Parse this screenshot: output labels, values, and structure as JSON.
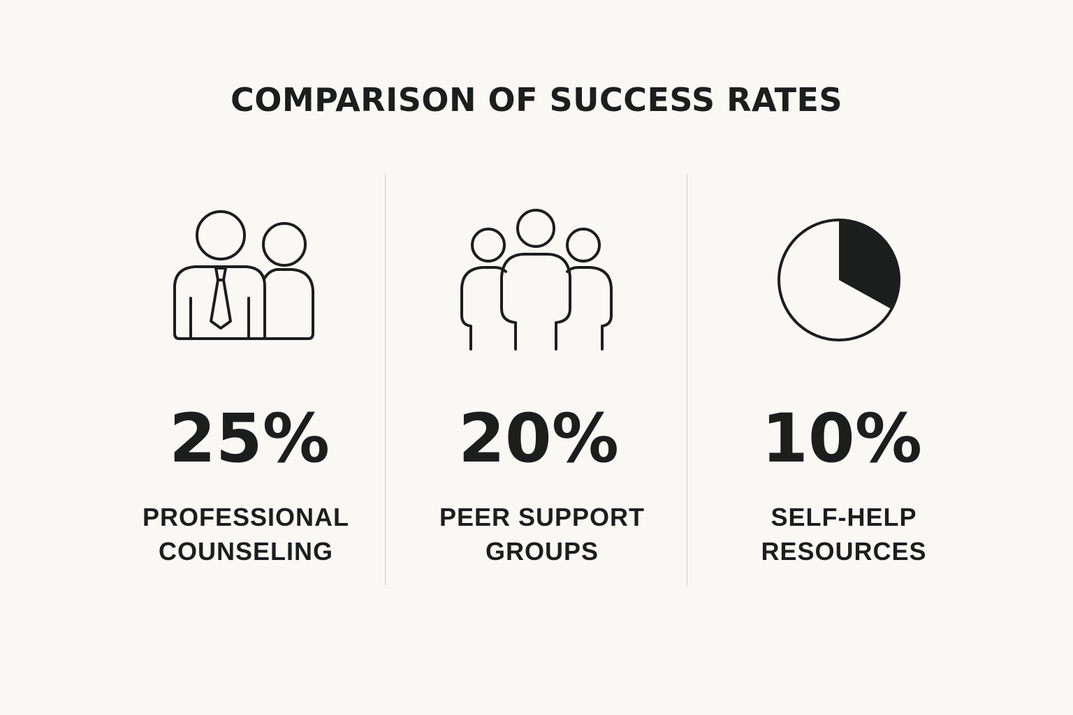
{
  "title": "COMPARISON OF SUCCESS RATES",
  "colors": {
    "background": "#faf8f4",
    "text": "#1c1e1e",
    "divider": "#c9c9c6"
  },
  "items": [
    {
      "icon": "professional-icon",
      "value": "25%",
      "label_lines": [
        "PROFESSIONAL",
        "COUNSELING"
      ]
    },
    {
      "icon": "group-icon",
      "value": "20%",
      "label_lines": [
        "PEER SUPPORT",
        "GROUPS"
      ]
    },
    {
      "icon": "pie-icon",
      "value": "10%",
      "label_lines": [
        "SELF-HELP",
        "RESOURCES"
      ]
    }
  ]
}
